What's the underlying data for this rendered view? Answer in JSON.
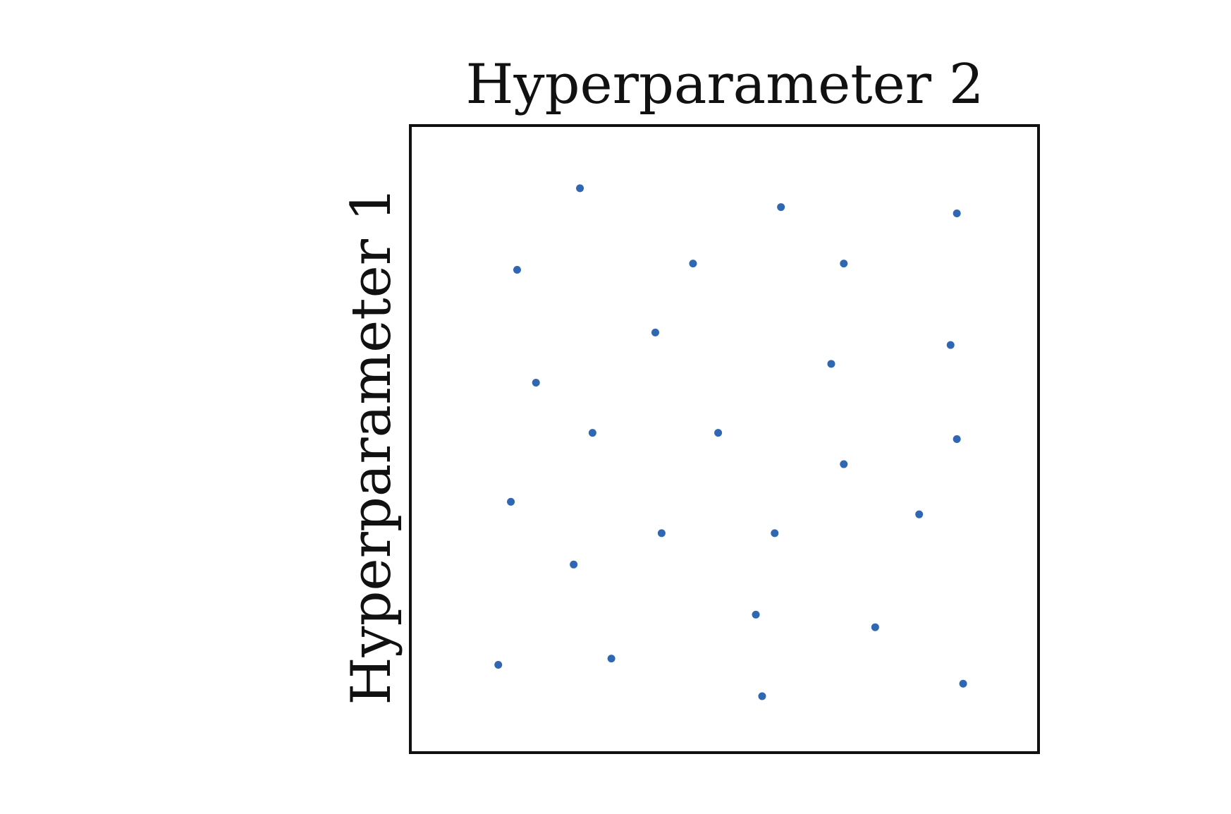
{
  "chart_data": {
    "type": "scatter",
    "title": "",
    "xlabel": "Hyperparameter 2",
    "ylabel": "Hyperparameter 1",
    "xlim": [
      0,
      100
    ],
    "ylim": [
      0,
      100
    ],
    "grid": false,
    "axis_ticks": false,
    "legend": false,
    "series": [
      {
        "color": "#2f67b2",
        "points": [
          {
            "x": 27,
            "y": 90
          },
          {
            "x": 59,
            "y": 87
          },
          {
            "x": 87,
            "y": 86
          },
          {
            "x": 17,
            "y": 77
          },
          {
            "x": 45,
            "y": 78
          },
          {
            "x": 69,
            "y": 78
          },
          {
            "x": 39,
            "y": 67
          },
          {
            "x": 86,
            "y": 65
          },
          {
            "x": 67,
            "y": 62
          },
          {
            "x": 20,
            "y": 59
          },
          {
            "x": 29,
            "y": 51
          },
          {
            "x": 49,
            "y": 51
          },
          {
            "x": 87,
            "y": 50
          },
          {
            "x": 69,
            "y": 46
          },
          {
            "x": 16,
            "y": 40
          },
          {
            "x": 81,
            "y": 38
          },
          {
            "x": 40,
            "y": 35
          },
          {
            "x": 58,
            "y": 35
          },
          {
            "x": 26,
            "y": 30
          },
          {
            "x": 55,
            "y": 22
          },
          {
            "x": 74,
            "y": 20
          },
          {
            "x": 14,
            "y": 14
          },
          {
            "x": 32,
            "y": 15
          },
          {
            "x": 56,
            "y": 9
          },
          {
            "x": 88,
            "y": 11
          }
        ]
      }
    ]
  }
}
